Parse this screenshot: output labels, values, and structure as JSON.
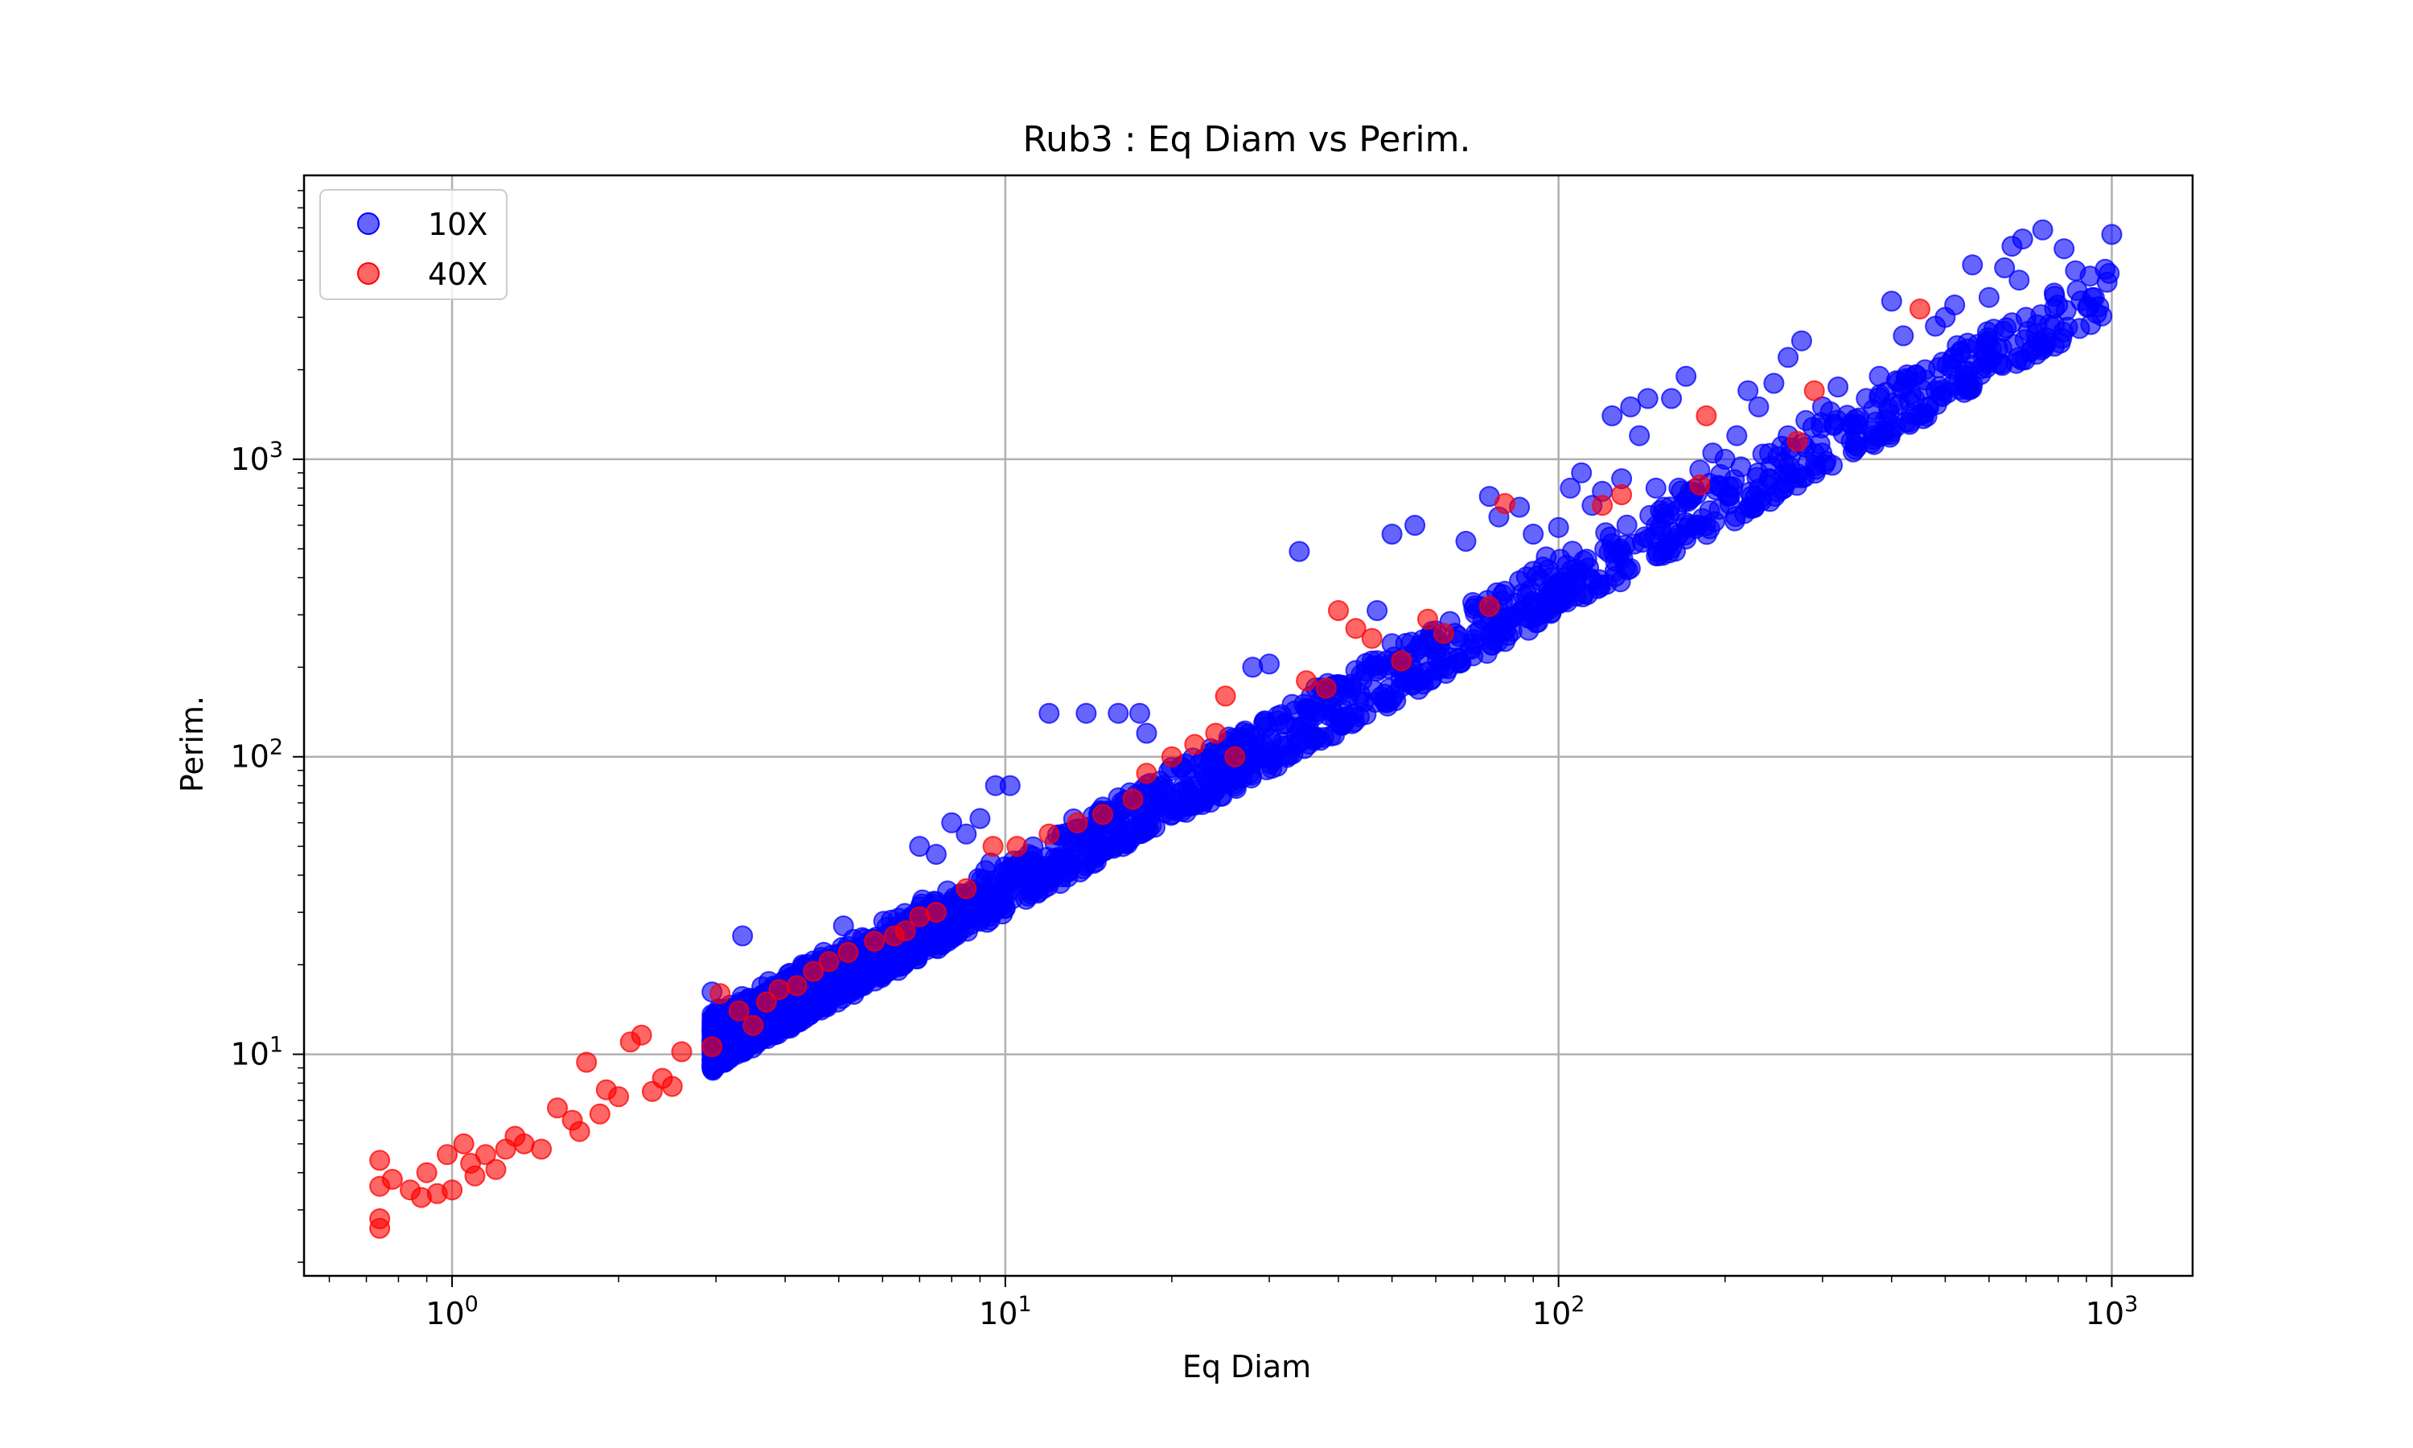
{
  "chart_data": {
    "type": "scatter",
    "title": "Rub3 : Eq Diam vs Perim.",
    "xlabel": "Eq Diam",
    "ylabel": "Perim.",
    "x_scale": "log",
    "y_scale": "log",
    "xlim": [
      0.54,
      1400
    ],
    "ylim": [
      1.8,
      9000
    ],
    "grid": true,
    "legend_position": "upper-left",
    "x_ticks": [
      {
        "base": "10",
        "exp": "0",
        "value": 1
      },
      {
        "base": "10",
        "exp": "1",
        "value": 10
      },
      {
        "base": "10",
        "exp": "2",
        "value": 100
      },
      {
        "base": "10",
        "exp": "3",
        "value": 1000
      }
    ],
    "y_ticks": [
      {
        "base": "10",
        "exp": "1",
        "value": 10
      },
      {
        "base": "10",
        "exp": "2",
        "value": 100
      },
      {
        "base": "10",
        "exp": "3",
        "value": 1000
      }
    ],
    "series": [
      {
        "name": "10X",
        "color": "#0000ff",
        "points": [
          [
            2.95,
            9.0
          ],
          [
            2.95,
            9.6
          ],
          [
            2.95,
            10.3
          ],
          [
            2.95,
            11.2
          ],
          [
            2.95,
            12.3
          ],
          [
            2.95,
            13.6
          ],
          [
            2.95,
            16.2
          ],
          [
            3.2,
            10.0
          ],
          [
            3.3,
            12.2
          ],
          [
            3.4,
            11.0
          ],
          [
            3.5,
            14.5
          ],
          [
            3.6,
            12.5
          ],
          [
            3.35,
            25.0
          ],
          [
            3.8,
            12.5
          ],
          [
            3.9,
            14.8
          ],
          [
            4.0,
            13.5
          ],
          [
            4.1,
            17.5
          ],
          [
            4.2,
            15.0
          ],
          [
            4.3,
            20.0
          ],
          [
            4.4,
            16.5
          ],
          [
            4.5,
            14.3
          ],
          [
            4.6,
            18.0
          ],
          [
            4.7,
            22.0
          ],
          [
            4.8,
            16.0
          ],
          [
            4.9,
            19.5
          ],
          [
            5.0,
            15.8
          ],
          [
            5.1,
            27.0
          ],
          [
            5.3,
            17.0
          ],
          [
            5.5,
            20.0
          ],
          [
            5.7,
            18.0
          ],
          [
            5.9,
            24.0
          ],
          [
            6.1,
            19.0
          ],
          [
            6.3,
            22.0
          ],
          [
            6.5,
            20.5
          ],
          [
            6.6,
            28.0
          ],
          [
            6.8,
            22.0
          ],
          [
            7.0,
            25.0
          ],
          [
            7.2,
            23.0
          ],
          [
            7.4,
            30.0
          ],
          [
            7.6,
            24.5
          ],
          [
            7.8,
            27.0
          ],
          [
            7.0,
            50.0
          ],
          [
            7.5,
            47.0
          ],
          [
            8.0,
            60.0
          ],
          [
            8.5,
            55.0
          ],
          [
            9.0,
            62.0
          ],
          [
            9.6,
            80.0
          ],
          [
            10.2,
            80.0
          ],
          [
            8.2,
            30.0
          ],
          [
            8.6,
            33.0
          ],
          [
            9.0,
            28.5
          ],
          [
            9.5,
            36.0
          ],
          [
            10.0,
            31.0
          ],
          [
            10.5,
            39.0
          ],
          [
            11.0,
            34.0
          ],
          [
            11.5,
            42.0
          ],
          [
            12.0,
            38.0
          ],
          [
            12.5,
            46.0
          ],
          [
            13.0,
            41.0
          ],
          [
            13.5,
            50.0
          ],
          [
            14.0,
            44.0
          ],
          [
            14.5,
            55.0
          ],
          [
            15.0,
            48.0
          ],
          [
            15.5,
            60.0
          ],
          [
            16.0,
            52.0
          ],
          [
            17.0,
            66.0
          ],
          [
            18.0,
            58.0
          ],
          [
            19.0,
            73.0
          ],
          [
            20.0,
            64.0
          ],
          [
            21.0,
            80.0
          ],
          [
            22.0,
            70.0
          ],
          [
            23.0,
            88.0
          ],
          [
            24.0,
            77.0
          ],
          [
            25.0,
            95.0
          ],
          [
            26.0,
            84.0
          ],
          [
            27.5,
            105.0
          ],
          [
            12.0,
            140.0
          ],
          [
            14.0,
            140.0
          ],
          [
            16.0,
            140.0
          ],
          [
            17.5,
            140.0
          ],
          [
            18.0,
            120.0
          ],
          [
            28.0,
            200.0
          ],
          [
            30.0,
            205.0
          ],
          [
            33.0,
            150.0
          ],
          [
            35.0,
            130.0
          ],
          [
            38.0,
            145.0
          ],
          [
            40.0,
            175.0
          ],
          [
            43.0,
            195.0
          ],
          [
            46.0,
            210.0
          ],
          [
            50.0,
            240.0
          ],
          [
            55.0,
            225.0
          ],
          [
            60.0,
            265.0
          ],
          [
            65.0,
            260.0
          ],
          [
            34.0,
            490.0
          ],
          [
            47.0,
            310.0
          ],
          [
            50.0,
            560.0
          ],
          [
            55.0,
            600.0
          ],
          [
            68.0,
            530.0
          ],
          [
            75.0,
            750.0
          ],
          [
            78.0,
            640.0
          ],
          [
            85.0,
            690.0
          ],
          [
            90.0,
            560.0
          ],
          [
            95.0,
            470.0
          ],
          [
            100.0,
            590.0
          ],
          [
            105.0,
            800.0
          ],
          [
            70.0,
            330.0
          ],
          [
            75.0,
            300.0
          ],
          [
            80.0,
            360.0
          ],
          [
            85.0,
            390.0
          ],
          [
            90.0,
            420.0
          ],
          [
            95.0,
            330.0
          ],
          [
            110.0,
            900.0
          ],
          [
            115.0,
            700.0
          ],
          [
            120.0,
            780.0
          ],
          [
            130.0,
            860.0
          ],
          [
            140.0,
            1200.0
          ],
          [
            150.0,
            800.0
          ],
          [
            125.0,
            1400.0
          ],
          [
            135.0,
            1500.0
          ],
          [
            145.0,
            1600.0
          ],
          [
            160.0,
            1600.0
          ],
          [
            170.0,
            1900.0
          ],
          [
            165.0,
            800.0
          ],
          [
            180.0,
            920.0
          ],
          [
            190.0,
            1050.0
          ],
          [
            200.0,
            1000.0
          ],
          [
            210.0,
            1200.0
          ],
          [
            220.0,
            1700.0
          ],
          [
            230.0,
            1500.0
          ],
          [
            245.0,
            1800.0
          ],
          [
            260.0,
            2200.0
          ],
          [
            275.0,
            2500.0
          ],
          [
            260.0,
            1200.0
          ],
          [
            280.0,
            1350.0
          ],
          [
            300.0,
            1500.0
          ],
          [
            320.0,
            1750.0
          ],
          [
            340.0,
            1300.0
          ],
          [
            360.0,
            1600.0
          ],
          [
            380.0,
            1900.0
          ],
          [
            400.0,
            3400.0
          ],
          [
            420.0,
            2600.0
          ],
          [
            440.0,
            1600.0
          ],
          [
            460.0,
            2000.0
          ],
          [
            480.0,
            2800.0
          ],
          [
            500.0,
            3000.0
          ],
          [
            520.0,
            3300.0
          ],
          [
            560.0,
            4500.0
          ],
          [
            600.0,
            3500.0
          ],
          [
            640.0,
            4400.0
          ],
          [
            660.0,
            5200.0
          ],
          [
            680.0,
            4000.0
          ],
          [
            700.0,
            3000.0
          ],
          [
            750.0,
            5900.0
          ],
          [
            820.0,
            5100.0
          ],
          [
            860.0,
            4300.0
          ],
          [
            1000.0,
            5700.0
          ],
          [
            690.0,
            5500.0
          ]
        ]
      },
      {
        "name": "40X",
        "color": "#ff0000",
        "points": [
          [
            0.74,
            2.6
          ],
          [
            0.74,
            2.8
          ],
          [
            0.74,
            3.6
          ],
          [
            0.74,
            4.4
          ],
          [
            0.78,
            3.8
          ],
          [
            0.84,
            3.5
          ],
          [
            0.88,
            3.3
          ],
          [
            0.9,
            4.0
          ],
          [
            0.94,
            3.4
          ],
          [
            0.98,
            4.6
          ],
          [
            1.0,
            3.5
          ],
          [
            1.05,
            5.0
          ],
          [
            1.08,
            4.3
          ],
          [
            1.1,
            3.9
          ],
          [
            1.15,
            4.6
          ],
          [
            1.2,
            4.1
          ],
          [
            1.25,
            4.8
          ],
          [
            1.3,
            5.3
          ],
          [
            1.35,
            5.0
          ],
          [
            1.45,
            4.8
          ],
          [
            1.55,
            6.6
          ],
          [
            1.65,
            6.0
          ],
          [
            1.7,
            5.5
          ],
          [
            1.75,
            9.4
          ],
          [
            1.85,
            6.3
          ],
          [
            1.9,
            7.6
          ],
          [
            2.0,
            7.2
          ],
          [
            2.1,
            11.0
          ],
          [
            2.2,
            11.6
          ],
          [
            2.3,
            7.5
          ],
          [
            2.4,
            8.3
          ],
          [
            2.5,
            7.8
          ],
          [
            2.6,
            10.2
          ],
          [
            2.95,
            10.6
          ],
          [
            3.05,
            16.0
          ],
          [
            3.3,
            14.0
          ],
          [
            3.5,
            12.5
          ],
          [
            3.7,
            15.0
          ],
          [
            3.9,
            16.5
          ],
          [
            4.2,
            17.0
          ],
          [
            4.5,
            19.0
          ],
          [
            4.8,
            20.5
          ],
          [
            5.2,
            22.0
          ],
          [
            5.8,
            24.0
          ],
          [
            6.3,
            25.0
          ],
          [
            6.6,
            26.0
          ],
          [
            7.0,
            29.0
          ],
          [
            7.5,
            30.0
          ],
          [
            8.5,
            36.0
          ],
          [
            9.5,
            50.0
          ],
          [
            10.5,
            50.0
          ],
          [
            12.0,
            55.0
          ],
          [
            13.5,
            60.0
          ],
          [
            15.0,
            64.0
          ],
          [
            17.0,
            72.0
          ],
          [
            18.0,
            88.0
          ],
          [
            20.0,
            100.0
          ],
          [
            22.0,
            110.0
          ],
          [
            24.0,
            120.0
          ],
          [
            25.0,
            160.0
          ],
          [
            26.0,
            100.0
          ],
          [
            35.0,
            180.0
          ],
          [
            38.0,
            170.0
          ],
          [
            40.0,
            310.0
          ],
          [
            43.0,
            270.0
          ],
          [
            46.0,
            250.0
          ],
          [
            52.0,
            210.0
          ],
          [
            58.0,
            290.0
          ],
          [
            62.0,
            260.0
          ],
          [
            75.0,
            320.0
          ],
          [
            80.0,
            710.0
          ],
          [
            120.0,
            700.0
          ],
          [
            130.0,
            760.0
          ],
          [
            180.0,
            820.0
          ],
          [
            185.0,
            1400.0
          ],
          [
            270.0,
            1150.0
          ],
          [
            290.0,
            1700.0
          ],
          [
            450.0,
            3200.0
          ]
        ]
      }
    ]
  }
}
